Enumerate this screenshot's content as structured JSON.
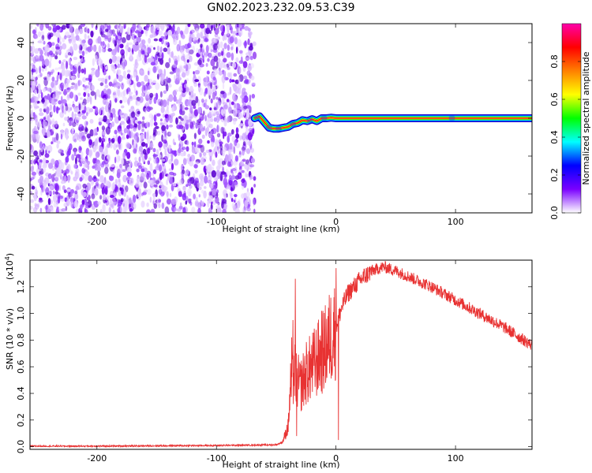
{
  "title": "GN02.2023.232.09.53.C39",
  "chart_data": [
    {
      "type": "heatmap",
      "xlabel": "Height of straight line (km)",
      "ylabel": "Frequency (Hz)",
      "xlim": [
        -256,
        164
      ],
      "ylim": [
        -50,
        50
      ],
      "xticks": [
        -200,
        -100,
        0,
        100
      ],
      "xtick_labels": [
        "-200",
        "-100",
        "0",
        "100"
      ],
      "yticks": [
        -40,
        -20,
        0,
        20,
        40
      ],
      "ytick_labels": [
        "-40",
        "-20",
        "0",
        "20",
        "40"
      ],
      "noise_region_x": [
        -256,
        -68
      ],
      "ridge": {
        "x": [
          -68,
          -64,
          -60,
          -56,
          -52,
          -48,
          -44,
          -40,
          -36,
          -32,
          -28,
          -24,
          -20,
          -16,
          -12,
          -8,
          -4,
          0,
          40,
          80,
          120,
          164
        ],
        "y": [
          0,
          1,
          -2,
          -5,
          -5.5,
          -5.5,
          -5,
          -4.5,
          -3,
          -2.5,
          -1,
          -1.5,
          -0.5,
          -1.5,
          0,
          0,
          0.3,
          0,
          0,
          0,
          0,
          0
        ]
      },
      "colorbar": {
        "label": "Normalized spectral amplitude",
        "ticks": [
          0.0,
          0.2,
          0.4,
          0.6,
          0.8
        ],
        "tick_labels": [
          "0.0",
          "0.2",
          "0.4",
          "0.6",
          "0.8"
        ],
        "range": [
          0,
          1
        ],
        "colors": [
          "#ffffff",
          "#7a00ff",
          "#0000ff",
          "#00ffff",
          "#00ff00",
          "#ffff00",
          "#ff8000",
          "#ff0000",
          "#ff00aa"
        ]
      }
    },
    {
      "type": "line",
      "xlabel": "Height of straight line (km)",
      "ylabel": "SNR (10 * v/v)",
      "multiplier": "(x10^4)",
      "multiplier_base": "(x10",
      "multiplier_exp": "4",
      "multiplier_close": ")",
      "xlim": [
        -256,
        164
      ],
      "ylim": [
        -0.02,
        1.4
      ],
      "xticks": [
        -200,
        -100,
        0,
        100
      ],
      "xtick_labels": [
        "-200",
        "-100",
        "0",
        "100"
      ],
      "yticks": [
        0.0,
        0.2,
        0.4,
        0.6,
        0.8,
        1.0,
        1.2
      ],
      "ytick_labels": [
        "0.0",
        "0.2",
        "0.4",
        "0.6",
        "0.8",
        "1.0",
        "1.2"
      ],
      "color": "#e83232",
      "envelope": {
        "x": [
          -256,
          -200,
          -100,
          -50,
          -45,
          -40,
          -38,
          -35,
          -30,
          -25,
          -20,
          -10,
          -5,
          0,
          5,
          10,
          20,
          30,
          40,
          50,
          60,
          80,
          100,
          120,
          140,
          164
        ],
        "y": [
          0.0,
          0.0,
          0.005,
          0.01,
          0.03,
          0.15,
          0.45,
          0.55,
          0.45,
          0.55,
          0.6,
          0.72,
          0.82,
          0.9,
          1.05,
          1.15,
          1.25,
          1.32,
          1.35,
          1.32,
          1.28,
          1.2,
          1.1,
          1.0,
          0.9,
          0.76
        ]
      },
      "spikes": [
        {
          "x": -34,
          "y": 1.26
        },
        {
          "x": -36,
          "y": 0.95
        },
        {
          "x": -37,
          "y": 0.82
        },
        {
          "x": -33,
          "y": 0.08
        },
        {
          "x": 0,
          "y": 1.34
        },
        {
          "x": 2,
          "y": 0.05
        },
        {
          "x": -12,
          "y": 1.02
        }
      ]
    }
  ]
}
